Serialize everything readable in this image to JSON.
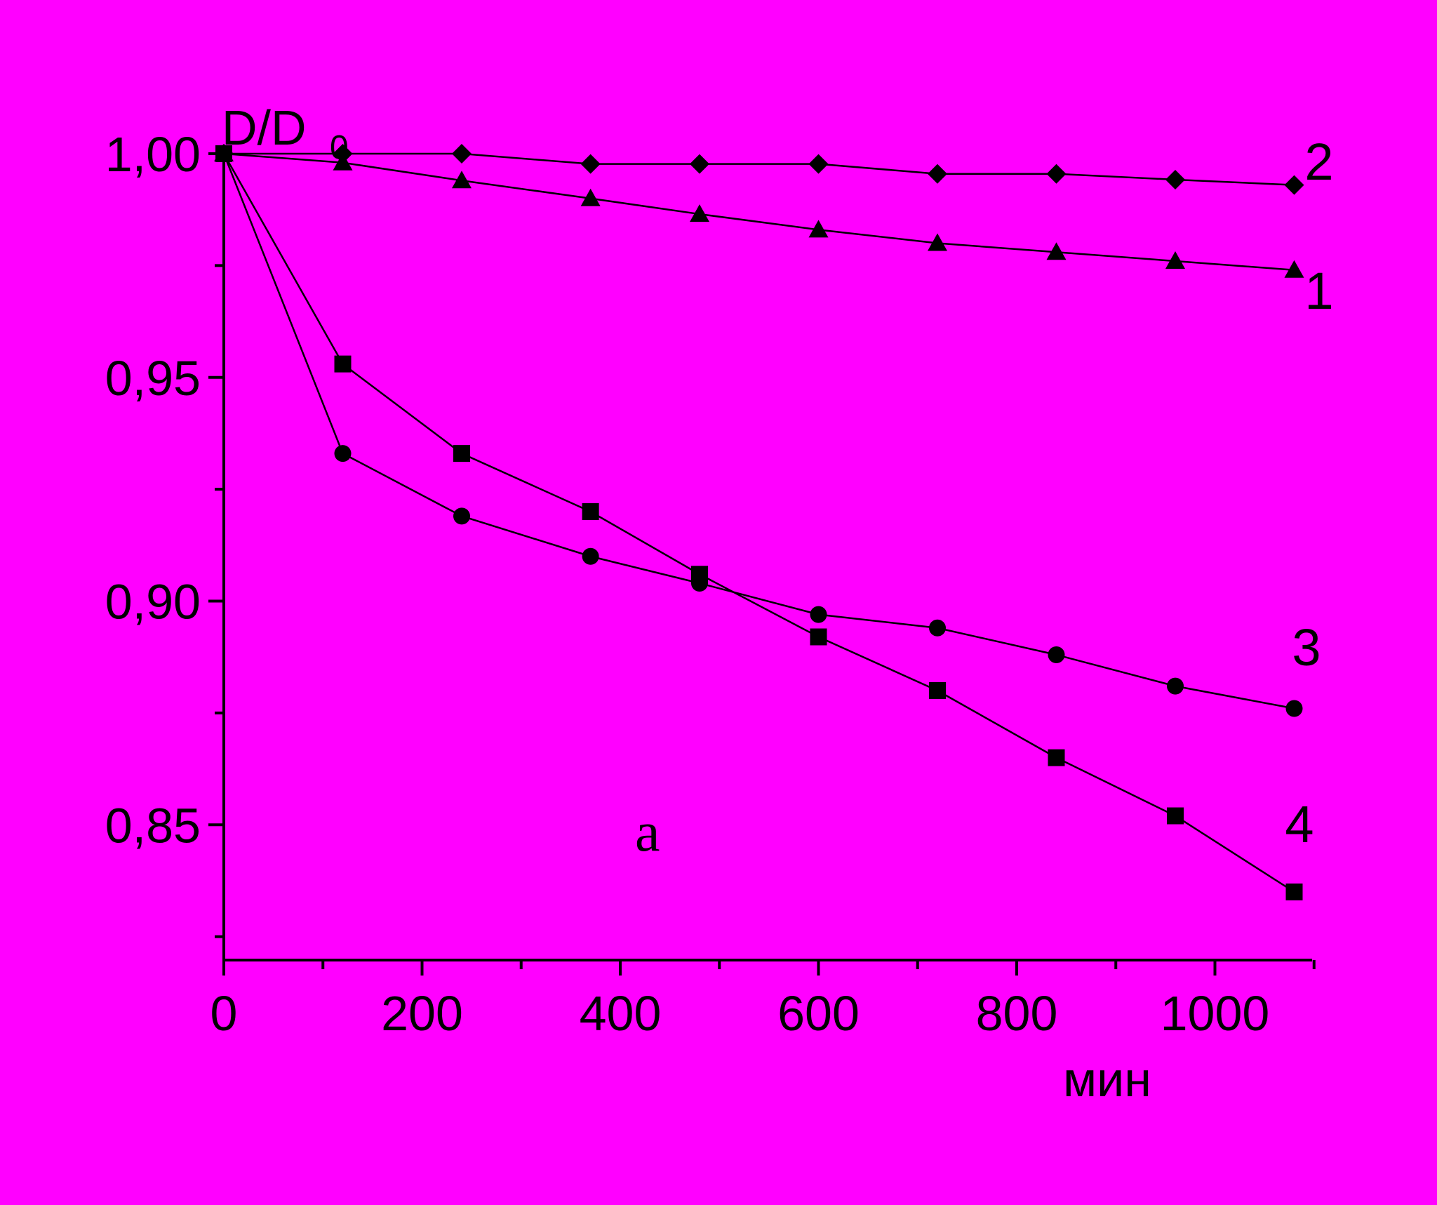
{
  "chart_data": {
    "type": "line",
    "title": "",
    "xlabel": "мин",
    "ylabel": "D/D",
    "ylabel_subscript": "0",
    "panel_label": "а",
    "xlim": [
      0,
      1100
    ],
    "ylim": [
      0.82,
      1.0
    ],
    "x_ticks": [
      0,
      200,
      400,
      600,
      800,
      1000
    ],
    "x_tick_labels": [
      "0",
      "200",
      "400",
      "600",
      "800",
      "1000"
    ],
    "y_ticks": [
      1.0,
      0.95,
      0.9,
      0.85
    ],
    "y_tick_labels": [
      "1,00",
      "0,95",
      "0,90",
      "0,85"
    ],
    "grid": false,
    "legend": "none",
    "series": [
      {
        "label": "1",
        "marker": "triangle",
        "x": [
          0,
          120,
          240,
          370,
          480,
          600,
          720,
          840,
          960,
          1080
        ],
        "y": [
          1.0,
          0.998,
          0.994,
          0.99,
          0.9865,
          0.983,
          0.98,
          0.978,
          0.976,
          0.974
        ]
      },
      {
        "label": "2",
        "marker": "diamond",
        "x": [
          0,
          120,
          240,
          370,
          480,
          600,
          720,
          840,
          960,
          1080
        ],
        "y": [
          1.0,
          1.0,
          1.0,
          0.9977,
          0.9977,
          0.9977,
          0.9955,
          0.9955,
          0.9942,
          0.993
        ]
      },
      {
        "label": "3",
        "marker": "circle",
        "x": [
          0,
          120,
          240,
          370,
          480,
          600,
          720,
          840,
          960,
          1080
        ],
        "y": [
          1.0,
          0.933,
          0.919,
          0.91,
          0.904,
          0.897,
          0.894,
          0.888,
          0.881,
          0.876
        ]
      },
      {
        "label": "4",
        "marker": "square",
        "x": [
          0,
          120,
          240,
          370,
          480,
          600,
          720,
          840,
          960,
          1080
        ],
        "y": [
          1.0,
          0.953,
          0.933,
          0.92,
          0.906,
          0.892,
          0.88,
          0.865,
          0.852,
          0.835
        ]
      }
    ],
    "colors": {
      "background": "#FF00FF",
      "ink": "#000000"
    }
  }
}
